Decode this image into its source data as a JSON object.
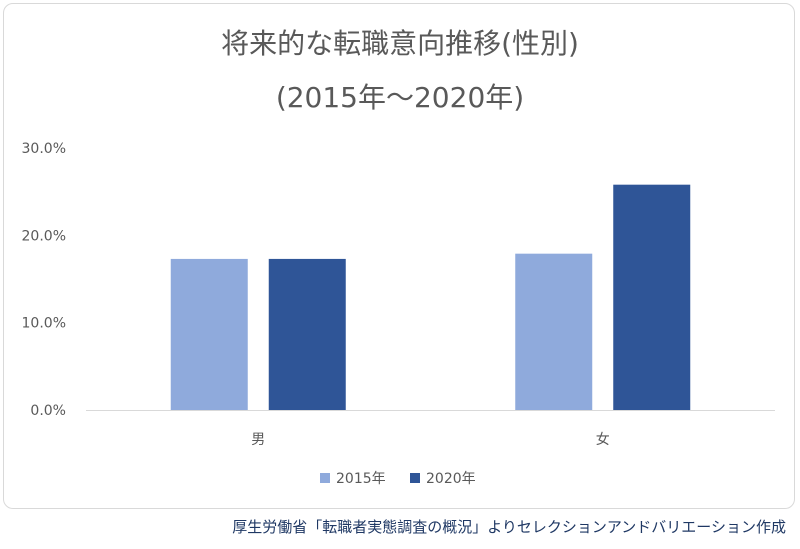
{
  "chart_data": {
    "type": "bar",
    "title": [
      "将来的な転職意向推移(性別)",
      "(2015年～2020年)"
    ],
    "categories": [
      "男",
      "女"
    ],
    "series": [
      {
        "name": "2015年",
        "values": [
          17.3,
          17.9
        ],
        "color": "#8faadc"
      },
      {
        "name": "2020年",
        "values": [
          17.3,
          25.8
        ],
        "color": "#2f5597"
      }
    ],
    "ylim": [
      0,
      30
    ],
    "yticks": [
      "0.0%",
      "10.0%",
      "20.0%",
      "30.0%"
    ],
    "grid": false,
    "legend": "bottom"
  },
  "source": "厚生労働省「転職者実態調査の概況」よりセレクションアンドバリエーション作成"
}
